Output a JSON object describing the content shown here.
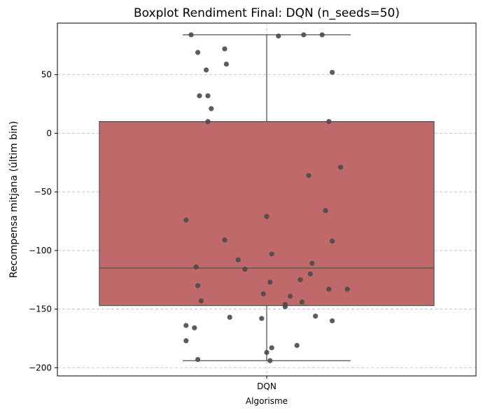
{
  "chart_data": {
    "type": "boxplot",
    "title": "Boxplot Rendiment Final: DQN (n_seeds=50)",
    "xlabel": "Algorisme",
    "ylabel": "Recompensa mitjana (últim bin)",
    "categories": [
      "DQN"
    ],
    "ylim": [
      -207,
      94
    ],
    "yticks": [
      -200,
      -150,
      -100,
      -50,
      0,
      50
    ],
    "grid": true,
    "box": {
      "category": "DQN",
      "q1": -147,
      "median": -115,
      "q3": 10,
      "whisker_low": -194,
      "whisker_high": 84,
      "color": "#c0696a"
    },
    "points": [
      {
        "x": -0.45,
        "y": 84
      },
      {
        "x": -0.41,
        "y": 69
      },
      {
        "x": -0.25,
        "y": 72
      },
      {
        "x": -0.36,
        "y": 54
      },
      {
        "x": -0.24,
        "y": 59
      },
      {
        "x": -0.4,
        "y": 32
      },
      {
        "x": -0.35,
        "y": 32
      },
      {
        "x": -0.33,
        "y": 21
      },
      {
        "x": -0.35,
        "y": 10
      },
      {
        "x": 0.07,
        "y": 83
      },
      {
        "x": 0.22,
        "y": 84
      },
      {
        "x": 0.33,
        "y": 84
      },
      {
        "x": 0.39,
        "y": 52
      },
      {
        "x": 0.37,
        "y": 10
      },
      {
        "x": 0.44,
        "y": -29
      },
      {
        "x": 0.25,
        "y": -36
      },
      {
        "x": 0.35,
        "y": -66
      },
      {
        "x": -0.48,
        "y": -74
      },
      {
        "x": 0.0,
        "y": -71
      },
      {
        "x": -0.25,
        "y": -91
      },
      {
        "x": 0.39,
        "y": -92
      },
      {
        "x": 0.03,
        "y": -103
      },
      {
        "x": -0.17,
        "y": -108
      },
      {
        "x": 0.27,
        "y": -111
      },
      {
        "x": -0.13,
        "y": -116
      },
      {
        "x": -0.42,
        "y": -114
      },
      {
        "x": 0.26,
        "y": -120
      },
      {
        "x": 0.2,
        "y": -125
      },
      {
        "x": 0.02,
        "y": -127
      },
      {
        "x": -0.41,
        "y": -130
      },
      {
        "x": 0.37,
        "y": -133
      },
      {
        "x": 0.48,
        "y": -133
      },
      {
        "x": -0.02,
        "y": -137
      },
      {
        "x": 0.14,
        "y": -139
      },
      {
        "x": -0.39,
        "y": -143
      },
      {
        "x": 0.21,
        "y": -144
      },
      {
        "x": 0.11,
        "y": -146
      },
      {
        "x": 0.11,
        "y": -148
      },
      {
        "x": 0.29,
        "y": -156
      },
      {
        "x": -0.22,
        "y": -157
      },
      {
        "x": -0.03,
        "y": -158
      },
      {
        "x": 0.39,
        "y": -160
      },
      {
        "x": -0.48,
        "y": -164
      },
      {
        "x": -0.43,
        "y": -166
      },
      {
        "x": -0.48,
        "y": -177
      },
      {
        "x": 0.18,
        "y": -181
      },
      {
        "x": 0.03,
        "y": -183
      },
      {
        "x": 0.0,
        "y": -187
      },
      {
        "x": -0.41,
        "y": -193
      },
      {
        "x": 0.02,
        "y": -194
      }
    ],
    "point_color": "#4a4a4a"
  }
}
